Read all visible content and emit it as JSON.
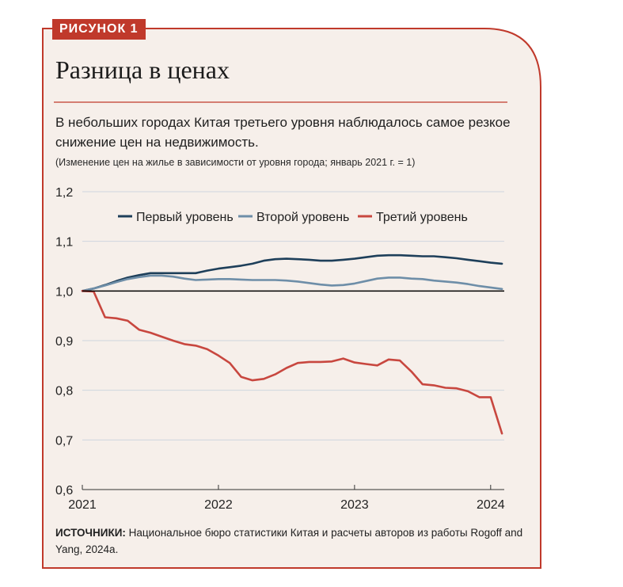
{
  "figure": {
    "badge": "РИСУНОК 1",
    "title": "Разница в ценах",
    "subtitle": "В небольших городах Китая третьего уровня наблюдалось самое резкое снижение цен на недвижимость.",
    "note": "(Изменение цен на жилье в зависимости от уровня города; январь 2021 г. = 1)",
    "source_label": "ИСТОЧНИКИ:",
    "source_text": " Национальное бюро статистики Китая и расчеты авторов из работы Rogoff and Yang, 2024a."
  },
  "colors": {
    "frame": "#c0392b",
    "background": "#f6efea",
    "tier1": "#1e3f5a",
    "tier2": "#6e8ea8",
    "tier3": "#c8473f",
    "grid": "#cfd6de"
  },
  "chart_data": {
    "type": "line",
    "x": [
      2021.0,
      2021.083,
      2021.167,
      2021.25,
      2021.333,
      2021.417,
      2021.5,
      2021.583,
      2021.667,
      2021.75,
      2021.833,
      2021.917,
      2022.0,
      2022.083,
      2022.167,
      2022.25,
      2022.333,
      2022.417,
      2022.5,
      2022.583,
      2022.667,
      2022.75,
      2022.833,
      2022.917,
      2023.0,
      2023.083,
      2023.167,
      2023.25,
      2023.333,
      2023.417,
      2023.5,
      2023.583,
      2023.667,
      2023.75,
      2023.833,
      2023.917,
      2024.0,
      2024.083
    ],
    "series": [
      {
        "name": "Первый уровень",
        "color": "#1e3f5a",
        "values": [
          1.0,
          1.005,
          1.012,
          1.02,
          1.027,
          1.032,
          1.036,
          1.036,
          1.036,
          1.036,
          1.036,
          1.041,
          1.045,
          1.048,
          1.051,
          1.055,
          1.061,
          1.064,
          1.065,
          1.064,
          1.063,
          1.061,
          1.061,
          1.063,
          1.065,
          1.068,
          1.071,
          1.072,
          1.072,
          1.071,
          1.07,
          1.07,
          1.068,
          1.066,
          1.063,
          1.06,
          1.057,
          1.055
        ]
      },
      {
        "name": "Второй уровень",
        "color": "#6e8ea8",
        "values": [
          1.0,
          1.005,
          1.011,
          1.018,
          1.024,
          1.028,
          1.031,
          1.031,
          1.029,
          1.025,
          1.022,
          1.023,
          1.024,
          1.024,
          1.023,
          1.022,
          1.022,
          1.022,
          1.021,
          1.019,
          1.016,
          1.013,
          1.011,
          1.012,
          1.015,
          1.02,
          1.025,
          1.027,
          1.027,
          1.025,
          1.024,
          1.021,
          1.019,
          1.017,
          1.014,
          1.01,
          1.007,
          1.004
        ]
      },
      {
        "name": "Третий уровень",
        "color": "#c8473f",
        "values": [
          1.0,
          0.999,
          0.947,
          0.945,
          0.94,
          0.922,
          0.916,
          0.908,
          0.9,
          0.893,
          0.89,
          0.883,
          0.87,
          0.855,
          0.827,
          0.82,
          0.823,
          0.832,
          0.845,
          0.855,
          0.857,
          0.857,
          0.858,
          0.864,
          0.856,
          0.853,
          0.85,
          0.862,
          0.86,
          0.838,
          0.812,
          0.81,
          0.805,
          0.804,
          0.798,
          0.786,
          0.786,
          0.713
        ]
      }
    ],
    "yticks": [
      "0,6",
      "0,7",
      "0,8",
      "0,9",
      "1,0",
      "1,1",
      "1,2"
    ],
    "ytick_values": [
      0.6,
      0.7,
      0.8,
      0.9,
      1.0,
      1.1,
      1.2
    ],
    "xticks": [
      "2021",
      "2022",
      "2023",
      "2024"
    ],
    "xtick_values": [
      2021,
      2022,
      2023,
      2024
    ],
    "ylim": [
      0.6,
      1.2
    ],
    "xlim": [
      2021.0,
      2024.1
    ],
    "baseline": 1.0,
    "grid": true,
    "legend_position": "top"
  }
}
